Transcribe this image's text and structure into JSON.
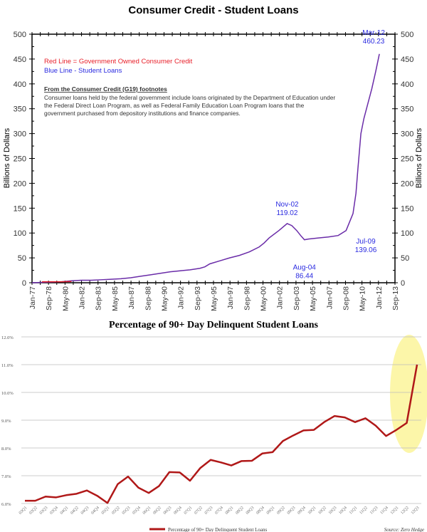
{
  "chart_data": [
    {
      "type": "line",
      "title": "Consumer Credit - Student Loans",
      "ylabel": "Billions of Dollars",
      "ylim": [
        0,
        500
      ],
      "yticks": [
        0,
        50,
        100,
        150,
        200,
        250,
        300,
        350,
        400,
        450,
        500
      ],
      "xlim": [
        1977.0,
        2013.75
      ],
      "xtick_labels": [
        "Jan-77",
        "Sep-78",
        "May-80",
        "Jan-82",
        "Sep-83",
        "May-85",
        "Jan-87",
        "Sep-88",
        "May-90",
        "Jan-92",
        "Sep-93",
        "May-95",
        "Jan-97",
        "Sep-98",
        "May-00",
        "Jan-02",
        "Sep-03",
        "May-05",
        "Jan-07",
        "Sep-08",
        "May-10",
        "Jan-12",
        "Sep-13"
      ],
      "legend": {
        "red": "Red Line = Government Owned Consumer Credit",
        "blue": "Blue Line - Student Loans"
      },
      "footnote_title": "From the Consumer Credit (G19) footnotes",
      "footnote_lines": [
        "Consumer loans held by the federal government include loans originated by the Department of Education under",
        "the Federal Direct Loan Program, as well as Federal Family Education Loan Program loans that the",
        "government purchased from depository institutions and finance companies."
      ],
      "series": [
        {
          "name": "Student Loans",
          "color": "#6a2ca8",
          "x": [
            1977,
            1978.5,
            1980,
            1981,
            1982,
            1983,
            1984,
            1985,
            1986,
            1987,
            1988,
            1989,
            1990,
            1991,
            1992,
            1993,
            1994,
            1994.5,
            1995,
            1996,
            1997,
            1998,
            1999,
            2000,
            2000.5,
            2001,
            2002,
            2002.83,
            2003.3,
            2003.8,
            2004.2,
            2004.58,
            2005,
            2006,
            2007,
            2008,
            2008.8,
            2009.5,
            2009.8,
            2010,
            2010.3,
            2010.6,
            2011,
            2011.4,
            2011.8,
            2012.17
          ],
          "y": [
            0,
            1,
            2,
            4,
            5,
            5,
            6,
            7,
            8,
            10,
            13,
            16,
            19,
            22,
            24,
            26,
            29,
            32,
            38,
            44,
            50,
            55,
            62,
            72,
            80,
            90,
            105,
            119.02,
            115,
            105,
            95,
            86.44,
            88,
            90,
            92,
            95,
            105,
            139.06,
            180,
            230,
            300,
            330,
            360,
            390,
            425,
            460.23
          ]
        },
        {
          "name": "Government Owned Consumer Credit",
          "color": "#e0202a",
          "x": [
            1978,
            1979,
            1980,
            1981
          ],
          "y": [
            2,
            2,
            2,
            2.5
          ]
        }
      ],
      "annotations": [
        {
          "label": "Nov-02",
          "value": "119.02",
          "x": 2002.83,
          "y": 119.02
        },
        {
          "label": "Aug-04",
          "value": "86.44",
          "x": 2004.58,
          "y": 86.44
        },
        {
          "label": "Jul-09",
          "value": "139.06",
          "x": 2009.5,
          "y": 139.06
        },
        {
          "label": "Mar-12",
          "value": "460.23",
          "x": 2012.17,
          "y": 460.23
        }
      ]
    },
    {
      "type": "line",
      "title": "Percentage of 90+ Day Delinquent Student Loans",
      "ylim": [
        6,
        12
      ],
      "ytick_labels": [
        "6.0%",
        "7.0%",
        "8.0%",
        "9.0%",
        "10.0%",
        "11.0%",
        "12.0%"
      ],
      "categories": [
        "03Q1",
        "03Q2",
        "03Q3",
        "03Q4",
        "04Q1",
        "04Q2",
        "04Q3",
        "04Q4",
        "05Q1",
        "05Q2",
        "05Q3",
        "05Q4",
        "06Q1",
        "06Q2",
        "06Q3",
        "06Q4",
        "07Q1",
        "07Q2",
        "07Q3",
        "07Q4",
        "08Q1",
        "08Q2",
        "08Q3",
        "08Q4",
        "09Q1",
        "09Q2",
        "09Q3",
        "09Q4",
        "10Q1",
        "10Q2",
        "10Q3",
        "10Q4",
        "11Q1",
        "11Q2",
        "11Q3",
        "11Q4",
        "12Q1",
        "12Q2",
        "12Q3"
      ],
      "series": [
        {
          "name": "Percentage of 90+ Day Delinquent Student Loans",
          "color": "#b01818",
          "values": [
            6.1,
            6.1,
            6.25,
            6.22,
            6.3,
            6.35,
            6.47,
            6.28,
            6.02,
            6.7,
            6.97,
            6.57,
            6.38,
            6.63,
            7.13,
            7.12,
            6.82,
            7.28,
            7.57,
            7.48,
            7.37,
            7.53,
            7.54,
            7.8,
            7.85,
            8.25,
            8.45,
            8.63,
            8.65,
            8.93,
            9.15,
            9.1,
            8.93,
            9.07,
            8.8,
            8.43,
            8.65,
            8.9,
            11.0
          ]
        }
      ],
      "legend_position": "bottom",
      "highlight_color": "#fbf59a",
      "source": "Source: Zero Hedge"
    }
  ]
}
